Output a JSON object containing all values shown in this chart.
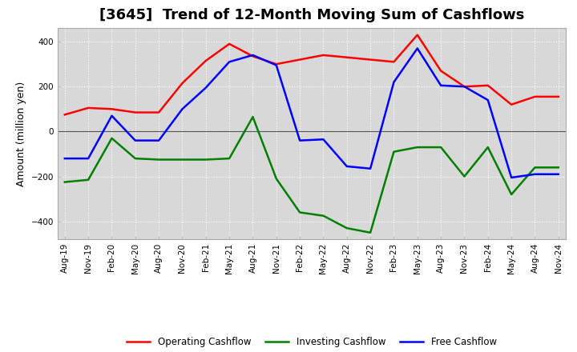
{
  "title": "[3645]  Trend of 12-Month Moving Sum of Cashflows",
  "xlabel": "",
  "ylabel": "Amount (million yen)",
  "ylim": [
    -480,
    460
  ],
  "yticks": [
    -400,
    -200,
    0,
    200,
    400
  ],
  "x_labels": [
    "Aug-19",
    "Nov-19",
    "Feb-20",
    "May-20",
    "Aug-20",
    "Nov-20",
    "Feb-21",
    "May-21",
    "Aug-21",
    "Nov-21",
    "Feb-22",
    "May-22",
    "Aug-22",
    "Nov-22",
    "Feb-23",
    "May-23",
    "Aug-23",
    "Nov-23",
    "Feb-24",
    "May-24",
    "Aug-24",
    "Nov-24"
  ],
  "operating": [
    75,
    105,
    100,
    85,
    85,
    215,
    315,
    390,
    335,
    300,
    320,
    340,
    330,
    320,
    310,
    430,
    270,
    200,
    205,
    120,
    155,
    155
  ],
  "investing": [
    -225,
    -215,
    -30,
    -120,
    -125,
    -125,
    -125,
    -120,
    65,
    -210,
    -360,
    -375,
    -430,
    -450,
    -90,
    -70,
    -70,
    -200,
    -70,
    -280,
    -160,
    -160
  ],
  "free": [
    -120,
    -120,
    70,
    -40,
    -40,
    100,
    195,
    310,
    340,
    295,
    -40,
    -35,
    -155,
    -165,
    220,
    370,
    205,
    200,
    140,
    -205,
    -190,
    -190
  ],
  "operating_color": "#ff0000",
  "investing_color": "#008000",
  "free_color": "#0000ff",
  "bg_color": "#ffffff",
  "plot_bg_color": "#d8d8d8",
  "grid_color": "#ffffff",
  "linewidth": 1.8,
  "legend_labels": [
    "Operating Cashflow",
    "Investing Cashflow",
    "Free Cashflow"
  ],
  "title_fontsize": 13,
  "tick_fontsize": 7.5,
  "ylabel_fontsize": 9
}
